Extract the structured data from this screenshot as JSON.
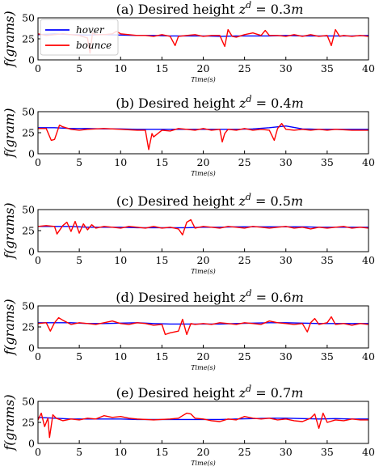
{
  "chart_data": [
    {
      "type": "line",
      "title": {
        "prefix": "(a) Desired height ",
        "var": "z",
        "sup": "d",
        "value": " = 0.3",
        "unit": "m"
      },
      "xlabel": "Time(s)",
      "ylabel": "f(grams)",
      "xlim": [
        0,
        40
      ],
      "ylim": [
        0,
        50
      ],
      "xticks": [
        0,
        5,
        10,
        15,
        20,
        25,
        30,
        35,
        40
      ],
      "yticks": [
        0,
        25,
        50
      ],
      "legend": {
        "placement": "top-left",
        "entries": [
          "hover",
          "bounce"
        ]
      },
      "series": [
        {
          "name": "hover",
          "color": "#0000ff",
          "x": [
            0,
            2,
            4,
            6,
            8,
            10,
            12,
            14,
            16,
            18,
            20,
            22,
            24,
            26,
            28,
            30,
            32,
            34,
            36,
            38,
            40
          ],
          "y": [
            30,
            31,
            30,
            29.5,
            30,
            29.5,
            29,
            29,
            28.5,
            28.5,
            28.5,
            28,
            28.5,
            28.5,
            28.5,
            29,
            28.5,
            28.5,
            28.5,
            28.5,
            29
          ]
        },
        {
          "name": "bounce",
          "color": "#ff0000",
          "x": [
            0,
            1,
            2,
            3,
            4,
            5,
            6,
            6.3,
            6.6,
            7,
            8,
            9,
            9.5,
            10,
            11,
            12,
            13,
            14,
            15,
            16,
            16.6,
            17,
            18,
            19,
            20,
            21,
            22,
            22.6,
            23,
            23.5,
            24,
            25,
            26,
            27,
            27.5,
            28,
            29,
            30,
            31,
            32,
            33,
            34,
            35,
            35.5,
            36,
            36.5,
            37,
            38,
            39,
            40
          ],
          "y": [
            31,
            29,
            30,
            31,
            30,
            29,
            26,
            8,
            32,
            30,
            30,
            31,
            34,
            31,
            30,
            29,
            29,
            28,
            30,
            28,
            17,
            28,
            29,
            30,
            28,
            29,
            29,
            16,
            36,
            28,
            27,
            30,
            32,
            29,
            35,
            29,
            29,
            28,
            30,
            28,
            30,
            28,
            29,
            17,
            36,
            28,
            29,
            28,
            29,
            28
          ]
        }
      ]
    },
    {
      "type": "line",
      "title": {
        "prefix": "(b) Desired height ",
        "var": "z",
        "sup": "d",
        "value": " = 0.4",
        "unit": "m"
      },
      "xlabel": "Time(s)",
      "ylabel": "f(gram)",
      "xlim": [
        0,
        40
      ],
      "ylim": [
        0,
        50
      ],
      "xticks": [
        0,
        5,
        10,
        15,
        20,
        25,
        30,
        35,
        40
      ],
      "yticks": [
        0,
        25,
        50
      ],
      "series": [
        {
          "name": "hover",
          "color": "#0000ff",
          "x": [
            0,
            2,
            4,
            6,
            8,
            10,
            12,
            14,
            16,
            18,
            20,
            22,
            24,
            26,
            28,
            30,
            32,
            34,
            36,
            38,
            40
          ],
          "y": [
            31,
            31,
            30,
            30,
            29.5,
            29.5,
            29,
            29,
            29,
            29,
            29,
            29,
            29,
            29.5,
            31,
            33,
            29.5,
            29,
            29,
            29,
            29
          ]
        },
        {
          "name": "bounce",
          "color": "#ff0000",
          "x": [
            0,
            1,
            1.6,
            2,
            2.6,
            3,
            4,
            5,
            6,
            8,
            10,
            12,
            13,
            13.4,
            13.8,
            14,
            15,
            16,
            17,
            18,
            19,
            20,
            21,
            22,
            22.3,
            22.6,
            23,
            24,
            25,
            26,
            27,
            28,
            28.6,
            29,
            29.5,
            30,
            31,
            32,
            33,
            34,
            35,
            36,
            38,
            40
          ],
          "y": [
            30,
            30,
            16,
            17,
            34,
            32,
            29,
            28,
            29,
            30,
            29,
            28,
            28,
            5,
            24,
            20,
            28,
            27,
            30,
            29,
            28,
            30,
            28,
            29,
            14,
            24,
            29,
            28,
            30,
            28,
            29,
            28,
            16,
            30,
            36,
            29,
            28,
            29,
            28,
            29,
            28,
            29,
            28,
            28
          ]
        }
      ]
    },
    {
      "type": "line",
      "title": {
        "prefix": "(c) Desired height ",
        "var": "z",
        "sup": "d",
        "value": " = 0.5",
        "unit": "m"
      },
      "xlabel": "Time(s)",
      "ylabel": "f(grams)",
      "xlim": [
        0,
        40
      ],
      "ylim": [
        0,
        50
      ],
      "xticks": [
        0,
        5,
        10,
        15,
        20,
        25,
        30,
        35,
        40
      ],
      "yticks": [
        0,
        25,
        50
      ],
      "series": [
        {
          "name": "hover",
          "color": "#0000ff",
          "x": [
            0,
            2,
            4,
            6,
            8,
            10,
            12,
            14,
            16,
            18,
            20,
            22,
            24,
            26,
            28,
            30,
            32,
            34,
            36,
            38,
            40
          ],
          "y": [
            30,
            30,
            30,
            29,
            29,
            29,
            28.5,
            28.5,
            28.5,
            28.5,
            29,
            29,
            29.5,
            29.5,
            29.5,
            29.5,
            29.5,
            29,
            29,
            29,
            29
          ]
        },
        {
          "name": "bounce",
          "color": "#ff0000",
          "x": [
            0,
            1,
            2,
            2.3,
            3,
            3.5,
            4,
            4.5,
            5,
            5.5,
            6,
            6.5,
            7,
            8,
            9,
            10,
            11,
            12,
            13,
            14,
            15,
            16,
            17,
            17.5,
            18,
            18.5,
            19,
            20,
            21,
            22,
            23,
            24,
            25,
            26,
            27,
            28,
            29,
            30,
            31,
            32,
            33,
            34,
            35,
            36,
            37,
            38,
            39,
            40
          ],
          "y": [
            30,
            31,
            30,
            21,
            31,
            35,
            24,
            36,
            22,
            33,
            26,
            32,
            28,
            30,
            29,
            28,
            30,
            29,
            28,
            30,
            28,
            29,
            27,
            20,
            35,
            38,
            28,
            30,
            29,
            28,
            30,
            29,
            28,
            30,
            29,
            28,
            29,
            30,
            28,
            29,
            27,
            29,
            28,
            29,
            30,
            28,
            29,
            28
          ]
        }
      ]
    },
    {
      "type": "line",
      "title": {
        "prefix": "(d) Desired height ",
        "var": "z",
        "sup": "d",
        "value": " = 0.6",
        "unit": "m"
      },
      "xlabel": "Time(s)",
      "ylabel": "f(grams)",
      "xlim": [
        0,
        40
      ],
      "ylim": [
        0,
        50
      ],
      "xticks": [
        0,
        5,
        10,
        15,
        20,
        25,
        30,
        35,
        40
      ],
      "yticks": [
        0,
        25,
        50
      ],
      "series": [
        {
          "name": "hover",
          "color": "#0000ff",
          "x": [
            0,
            2,
            4,
            6,
            8,
            10,
            12,
            14,
            16,
            18,
            20,
            22,
            24,
            26,
            28,
            30,
            32,
            34,
            36,
            38,
            40
          ],
          "y": [
            30,
            30,
            30,
            29,
            29,
            29.5,
            30,
            29,
            28.5,
            28.5,
            28.5,
            28.5,
            29,
            29.5,
            30,
            30,
            29.5,
            29,
            29,
            29,
            29
          ]
        },
        {
          "name": "bounce",
          "color": "#ff0000",
          "x": [
            0,
            1,
            1.5,
            2,
            2.5,
            3,
            4,
            5,
            6,
            7,
            8,
            9,
            10,
            11,
            12,
            13,
            14,
            15,
            15.4,
            16,
            17,
            17.5,
            18,
            18.5,
            19,
            20,
            21,
            22,
            23,
            24,
            25,
            26,
            27,
            28,
            29,
            30,
            31,
            32,
            32.6,
            33,
            33.5,
            34,
            35,
            35.5,
            36,
            37,
            38,
            39,
            40
          ],
          "y": [
            29,
            30,
            20,
            30,
            36,
            33,
            28,
            30,
            29,
            28,
            30,
            32,
            29,
            28,
            30,
            29,
            27,
            28,
            16,
            18,
            20,
            34,
            16,
            29,
            28,
            29,
            28,
            30,
            29,
            28,
            30,
            29,
            28,
            32,
            30,
            29,
            28,
            29,
            19,
            30,
            35,
            28,
            30,
            37,
            28,
            29,
            27,
            29,
            28
          ]
        }
      ]
    },
    {
      "type": "line",
      "title": {
        "prefix": "(e) Desired height ",
        "var": "z",
        "sup": "d",
        "value": " = 0.7",
        "unit": "m"
      },
      "xlabel": "Time(s)",
      "ylabel": "f(grams)",
      "xlim": [
        0,
        40
      ],
      "ylim": [
        0,
        50
      ],
      "xticks": [
        0,
        5,
        10,
        15,
        20,
        25,
        30,
        35,
        40
      ],
      "yticks": [
        0,
        25,
        50
      ],
      "series": [
        {
          "name": "hover",
          "color": "#0000ff",
          "x": [
            0,
            2,
            4,
            6,
            8,
            10,
            12,
            14,
            16,
            18,
            20,
            22,
            24,
            26,
            28,
            30,
            32,
            34,
            36,
            38,
            40
          ],
          "y": [
            31,
            30,
            29,
            29,
            29,
            29,
            28.5,
            28.5,
            28.5,
            28.5,
            28.5,
            28.5,
            29,
            29.5,
            30,
            30,
            29.5,
            29,
            29.5,
            29,
            29
          ]
        },
        {
          "name": "bounce",
          "color": "#ff0000",
          "x": [
            0,
            0.4,
            0.8,
            1.2,
            1.4,
            1.8,
            2.2,
            3,
            4,
            5,
            6,
            7,
            8,
            9,
            10,
            11,
            12,
            14,
            16,
            17,
            17.5,
            18,
            18.5,
            19,
            20,
            21,
            22,
            23,
            24,
            25,
            26,
            27,
            28,
            29,
            30,
            31,
            32,
            33,
            33.5,
            34,
            34.5,
            35,
            36,
            37,
            38,
            39,
            40
          ],
          "y": [
            28,
            36,
            20,
            30,
            7,
            34,
            30,
            27,
            29,
            28,
            30,
            29,
            33,
            31,
            32,
            30,
            29,
            28,
            29,
            30,
            33,
            36,
            35,
            30,
            29,
            27,
            26,
            29,
            28,
            32,
            30,
            29,
            30,
            28,
            29,
            27,
            26,
            30,
            35,
            18,
            36,
            25,
            28,
            27,
            29,
            28,
            28
          ]
        }
      ]
    }
  ]
}
